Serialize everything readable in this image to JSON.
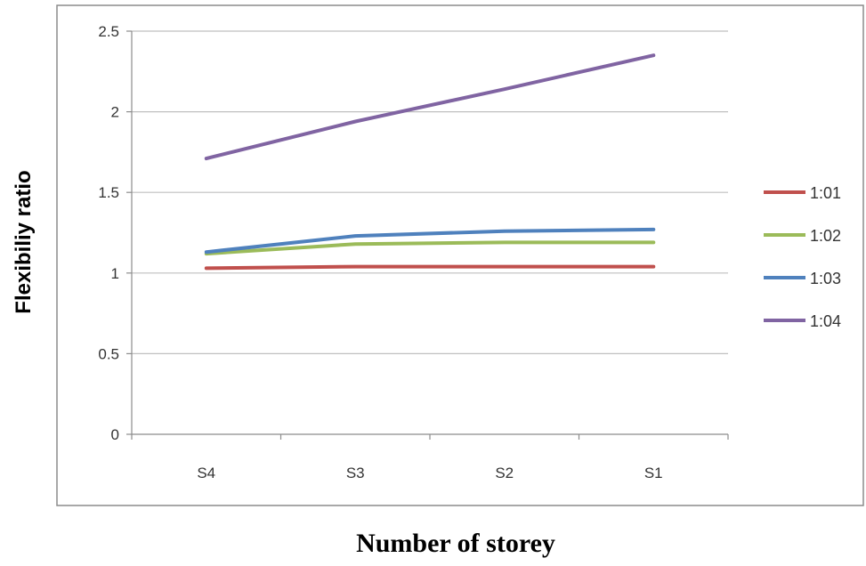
{
  "chart_data": {
    "type": "line",
    "title": "",
    "xlabel": "Number of storey",
    "ylabel": "Flexibiliy ratio",
    "categories": [
      "S4",
      "S3",
      "S2",
      "S1"
    ],
    "ylim": [
      0,
      2.5
    ],
    "yticks": [
      "0",
      "0.5",
      "1",
      "1.5",
      "2",
      "2.5"
    ],
    "grid": true,
    "legend_position": "right",
    "series": [
      {
        "name": "1:01",
        "color": "#c0504d",
        "values": [
          1.03,
          1.04,
          1.04,
          1.04
        ]
      },
      {
        "name": "1:02",
        "color": "#9bbb59",
        "values": [
          1.12,
          1.18,
          1.19,
          1.19
        ]
      },
      {
        "name": "1:03",
        "color": "#4f81bd",
        "values": [
          1.13,
          1.23,
          1.26,
          1.27
        ]
      },
      {
        "name": "1:04",
        "color": "#8064a2",
        "values": [
          1.71,
          1.94,
          2.14,
          2.35
        ]
      }
    ]
  }
}
